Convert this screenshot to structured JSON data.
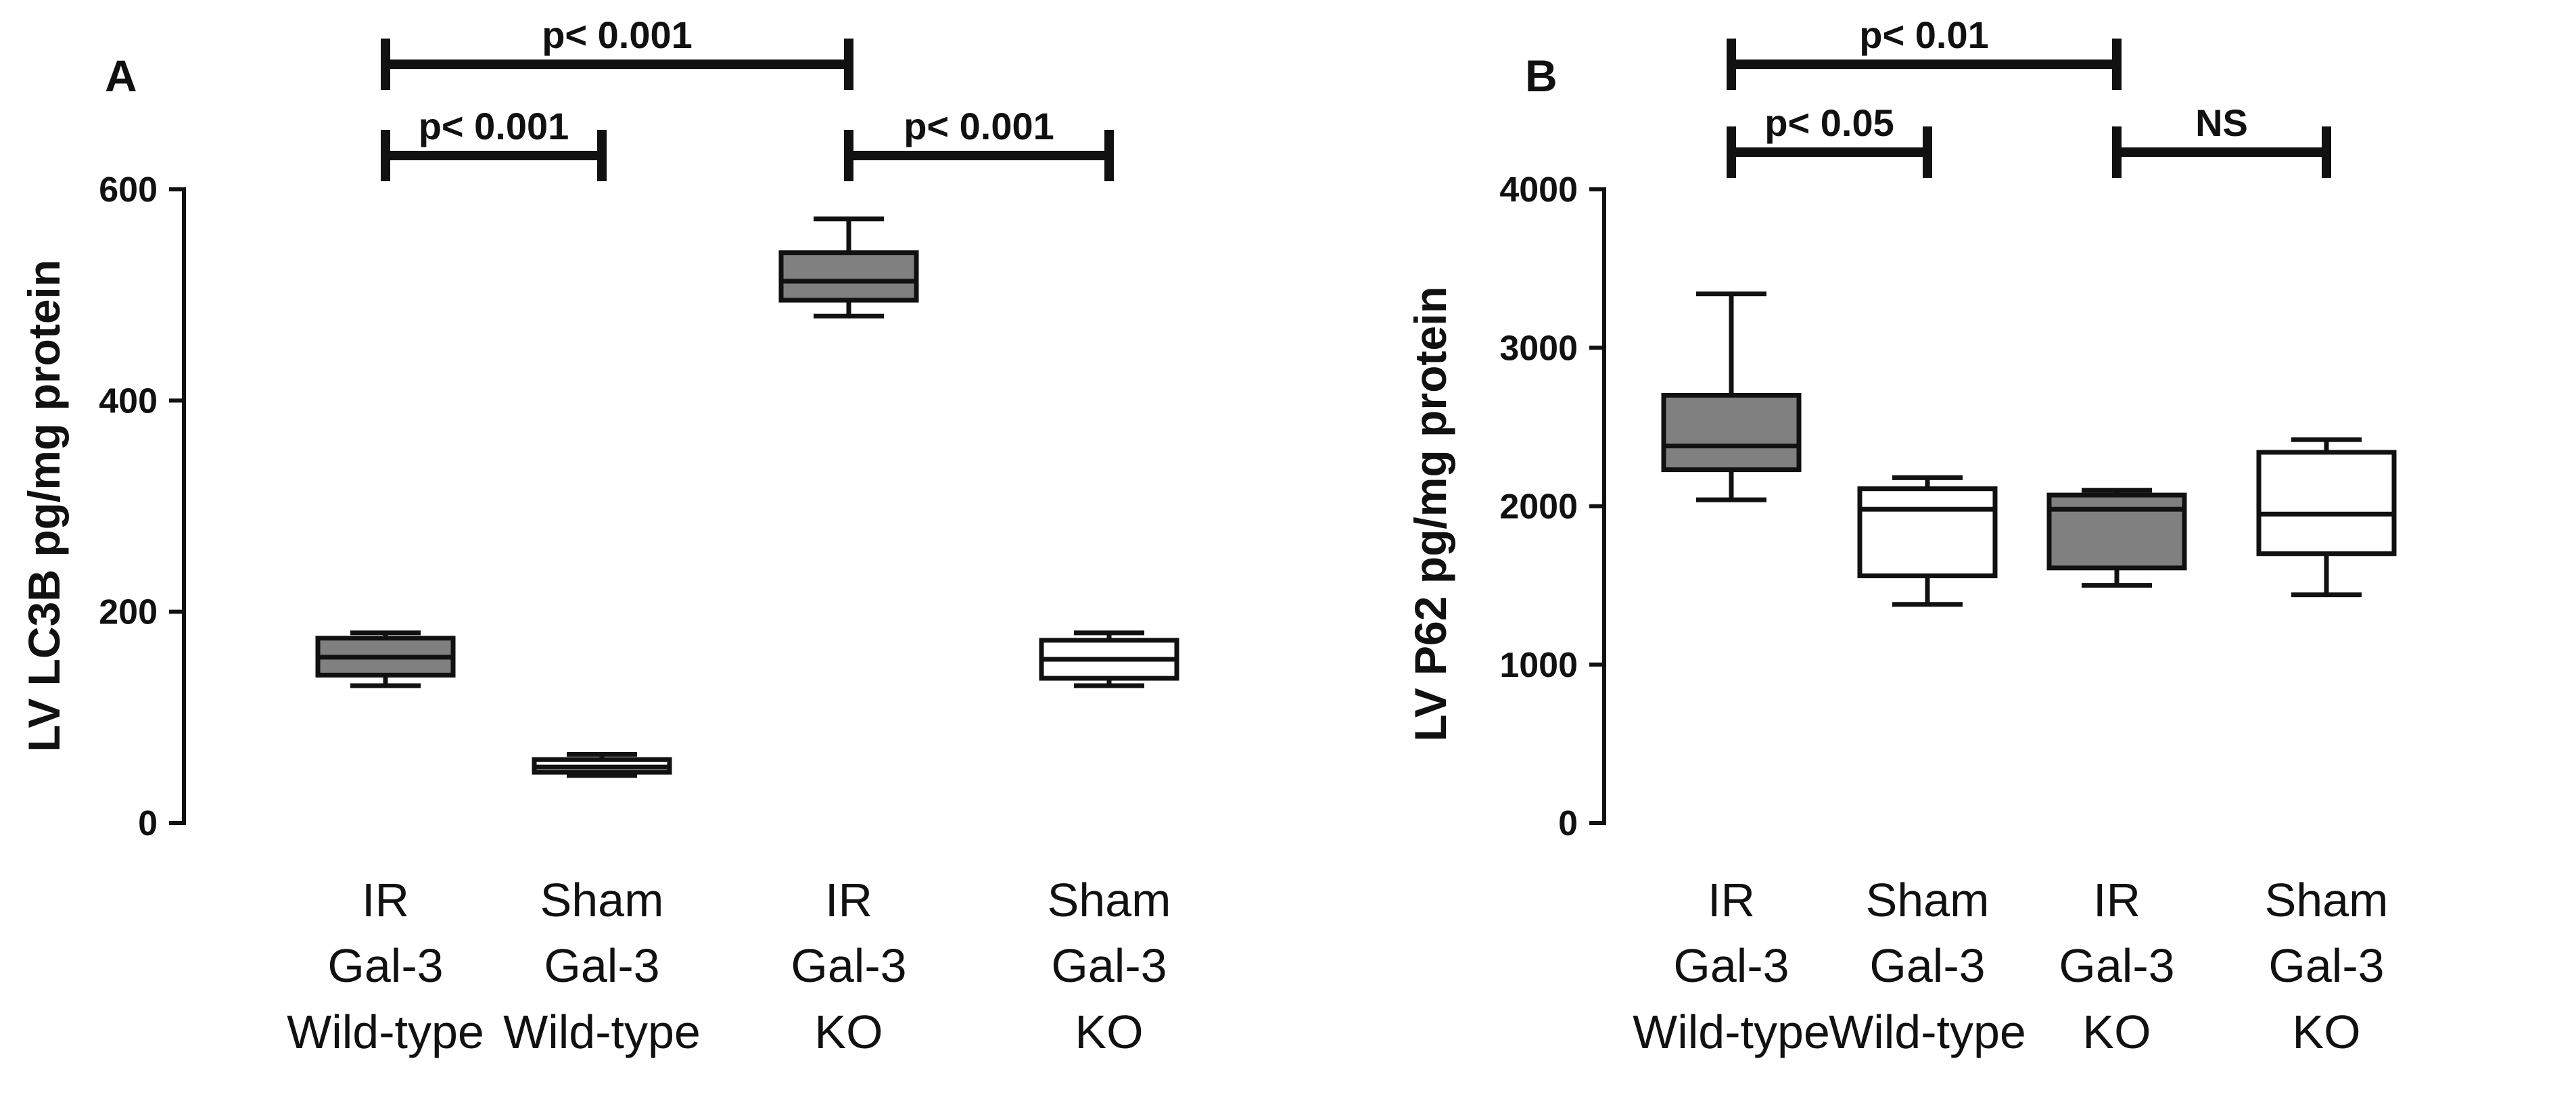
{
  "chart_data": [
    {
      "id": "A",
      "type": "box",
      "panel_label": "A",
      "ylabel": "LV LC3B pg/mg protein",
      "ylim": [
        0,
        600
      ],
      "yticks": [
        0,
        200,
        400,
        600
      ],
      "categories": [
        [
          "IR",
          "Gal-3",
          "Wild-type"
        ],
        [
          "Sham",
          "Gal-3",
          "Wild-type"
        ],
        [
          "IR",
          "Gal-3",
          "KO"
        ],
        [
          "Sham",
          "Gal-3",
          "KO"
        ]
      ],
      "boxes": [
        {
          "min": 130,
          "q1": 140,
          "median": 157,
          "q3": 175,
          "max": 180,
          "fill": "#808080"
        },
        {
          "min": 45,
          "q1": 48,
          "median": 53,
          "q3": 60,
          "max": 65,
          "fill": "#ffffff"
        },
        {
          "min": 480,
          "q1": 495,
          "median": 513,
          "q3": 540,
          "max": 572,
          "fill": "#808080"
        },
        {
          "min": 130,
          "q1": 137,
          "median": 155,
          "q3": 173,
          "max": 180,
          "fill": "#ffffff"
        }
      ],
      "comparisons": [
        {
          "from": 0,
          "to": 1,
          "label": "p< 0.001",
          "level": 1
        },
        {
          "from": 2,
          "to": 3,
          "label": "p< 0.001",
          "level": 1
        },
        {
          "from": 0,
          "to": 2,
          "label": "p< 0.001",
          "level": 2
        }
      ]
    },
    {
      "id": "B",
      "type": "box",
      "panel_label": "B",
      "ylabel": "LV P62 pg/mg protein",
      "ylim": [
        0,
        4000
      ],
      "yticks": [
        0,
        1000,
        2000,
        3000,
        4000
      ],
      "categories": [
        [
          "IR",
          "Gal-3",
          "Wild-type"
        ],
        [
          "Sham",
          "Gal-3",
          "Wild-type"
        ],
        [
          "IR",
          "Gal-3",
          "KO"
        ],
        [
          "Sham",
          "Gal-3",
          "KO"
        ]
      ],
      "boxes": [
        {
          "min": 2040,
          "q1": 2230,
          "median": 2380,
          "q3": 2700,
          "max": 3340,
          "fill": "#808080"
        },
        {
          "min": 1380,
          "q1": 1560,
          "median": 1980,
          "q3": 2110,
          "max": 2180,
          "fill": "#ffffff"
        },
        {
          "min": 1500,
          "q1": 1610,
          "median": 1980,
          "q3": 2070,
          "max": 2100,
          "fill": "#808080"
        },
        {
          "min": 1440,
          "q1": 1700,
          "median": 1950,
          "q3": 2340,
          "max": 2420,
          "fill": "#ffffff"
        }
      ],
      "comparisons": [
        {
          "from": 0,
          "to": 1,
          "label": "p< 0.05",
          "level": 1
        },
        {
          "from": 2,
          "to": 3,
          "label": "NS",
          "level": 1
        },
        {
          "from": 0,
          "to": 2,
          "label": "p< 0.01",
          "level": 2
        }
      ]
    }
  ]
}
